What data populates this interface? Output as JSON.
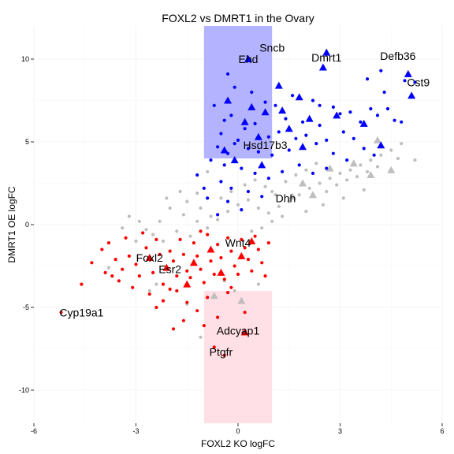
{
  "chart_data": {
    "type": "scatter",
    "title": "FOXL2 vs DMRT1 in the Ovary",
    "xlabel": "FOXL2 KO logFC",
    "ylabel": "DMRT1 OE logFC",
    "xlim": [
      -6,
      6
    ],
    "ylim": [
      -12,
      12
    ],
    "x_ticks": [
      -6,
      -3,
      0,
      3,
      6
    ],
    "y_ticks": [
      -10,
      -5,
      0,
      5,
      10
    ],
    "grid": true,
    "legend": "none",
    "colors": {
      "blue_points": "#0000ff",
      "red_points": "#ff0000",
      "grey_points": "#bebebe",
      "blue_region": "#b3b3ff",
      "red_region": "#ffe0e6"
    },
    "regions": [
      {
        "x": [
          -1,
          1
        ],
        "y": [
          4,
          12
        ],
        "color": "#b3b3ff"
      },
      {
        "x": [
          -1,
          1
        ],
        "y": [
          -12,
          -4
        ],
        "color": "#ffe0e6"
      }
    ],
    "labeled_genes": [
      {
        "label": "Sncb",
        "x": 1.0,
        "y": 10.7
      },
      {
        "label": "Ehd",
        "x": 0.3,
        "y": 10.0
      },
      {
        "label": "Dmrt1",
        "x": 2.6,
        "y": 10.1
      },
      {
        "label": "Defb36",
        "x": 4.7,
        "y": 10.2
      },
      {
        "label": "Cst9",
        "x": 5.3,
        "y": 8.6
      },
      {
        "label": "Hsd17b3",
        "x": 0.8,
        "y": 4.8
      },
      {
        "label": "Dhh",
        "x": 1.4,
        "y": 1.6
      },
      {
        "label": "Wnt4",
        "x": 0.0,
        "y": -1.1
      },
      {
        "label": "Foxl2",
        "x": -2.6,
        "y": -2.0
      },
      {
        "label": "Esr2",
        "x": -2.0,
        "y": -2.7
      },
      {
        "label": "Cyp19a1",
        "x": -4.6,
        "y": -5.3
      },
      {
        "label": "Adcyap1",
        "x": 0.0,
        "y": -6.4
      },
      {
        "label": "Ptgfr",
        "x": -0.5,
        "y": -7.7
      }
    ],
    "series": [
      {
        "color": "#0000ff",
        "triangles": [
          [
            0.3,
            10.0
          ],
          [
            2.6,
            10.4
          ],
          [
            1.2,
            8.4
          ],
          [
            2.5,
            9.5
          ],
          [
            5.0,
            9.1
          ],
          [
            5.1,
            7.8
          ],
          [
            1.8,
            7.7
          ],
          [
            0.4,
            7.1
          ],
          [
            0.8,
            6.8
          ],
          [
            0.2,
            6.2
          ],
          [
            1.5,
            5.8
          ],
          [
            2.1,
            6.4
          ],
          [
            3.7,
            6.1
          ],
          [
            -0.4,
            4.5
          ],
          [
            0.7,
            3.6
          ],
          [
            1.3,
            6.9
          ],
          [
            -0.3,
            7.5
          ],
          [
            2.9,
            6.6
          ],
          [
            4.2,
            4.8
          ],
          [
            0.6,
            5.3
          ],
          [
            -0.1,
            3.9
          ],
          [
            1.9,
            4.7
          ]
        ],
        "points": [
          [
            -0.3,
            9.1
          ],
          [
            -0.1,
            8.3
          ],
          [
            0.4,
            8.0
          ],
          [
            0.8,
            7.4
          ],
          [
            1.1,
            7.2
          ],
          [
            1.4,
            6.4
          ],
          [
            1.6,
            7.8
          ],
          [
            2.2,
            7.5
          ],
          [
            2.4,
            7.2
          ],
          [
            2.8,
            7.1
          ],
          [
            3.0,
            6.7
          ],
          [
            3.3,
            6.8
          ],
          [
            3.6,
            6.2
          ],
          [
            3.9,
            7.0
          ],
          [
            4.1,
            6.6
          ],
          [
            4.4,
            7.0
          ],
          [
            4.6,
            6.3
          ],
          [
            4.3,
            8.0
          ],
          [
            3.8,
            8.8
          ],
          [
            4.9,
            8.7
          ],
          [
            5.2,
            8.6
          ],
          [
            4.8,
            6.2
          ],
          [
            4.2,
            9.3
          ],
          [
            -0.2,
            6.6
          ],
          [
            -0.4,
            6.3
          ],
          [
            -0.7,
            7.2
          ],
          [
            -0.5,
            5.5
          ],
          [
            -0.6,
            4.7
          ],
          [
            -0.3,
            4.3
          ],
          [
            0.0,
            5.1
          ],
          [
            0.2,
            5.8
          ],
          [
            0.5,
            6.1
          ],
          [
            0.9,
            5.3
          ],
          [
            1.2,
            5.6
          ],
          [
            1.7,
            5.2
          ],
          [
            2.0,
            5.4
          ],
          [
            2.3,
            4.9
          ],
          [
            2.6,
            5.1
          ],
          [
            2.8,
            4.3
          ],
          [
            3.1,
            5.6
          ],
          [
            3.4,
            5.2
          ],
          [
            3.7,
            4.6
          ],
          [
            4.0,
            4.2
          ],
          [
            -0.8,
            3.9
          ],
          [
            -0.4,
            3.6
          ],
          [
            0.1,
            3.4
          ],
          [
            0.5,
            3.1
          ],
          [
            0.9,
            2.8
          ],
          [
            1.3,
            3.2
          ],
          [
            1.8,
            3.6
          ],
          [
            2.2,
            3.1
          ],
          [
            -0.5,
            2.6
          ],
          [
            -0.2,
            2.2
          ],
          [
            0.3,
            2.0
          ],
          [
            0.7,
            1.7
          ],
          [
            -0.3,
            1.4
          ],
          [
            0.1,
            0.9
          ],
          [
            -0.6,
            0.6
          ],
          [
            -1.0,
            2.2
          ],
          [
            -1.2,
            3.0
          ],
          [
            -0.9,
            1.6
          ],
          [
            1.0,
            4.2
          ],
          [
            1.5,
            4.5
          ],
          [
            2.6,
            3.4
          ],
          [
            3.2,
            3.9
          ],
          [
            0.3,
            4.6
          ],
          [
            -0.1,
            4.9
          ],
          [
            0.6,
            4.4
          ],
          [
            1.9,
            6.2
          ],
          [
            2.4,
            6.0
          ]
        ]
      },
      {
        "color": "#ff0000",
        "triangles": [
          [
            -2.6,
            -2.0
          ],
          [
            -2.1,
            -2.6
          ],
          [
            0.4,
            -1.0
          ],
          [
            -0.8,
            -1.5
          ],
          [
            -1.3,
            -2.3
          ],
          [
            0.2,
            -6.5
          ],
          [
            -0.5,
            -2.9
          ],
          [
            -1.5,
            -3.6
          ],
          [
            0.1,
            -1.9
          ]
        ],
        "points": [
          [
            -4.0,
            -1.5
          ],
          [
            -3.6,
            -2.1
          ],
          [
            -3.9,
            -2.9
          ],
          [
            -3.4,
            -2.7
          ],
          [
            -3.2,
            -1.9
          ],
          [
            -3.0,
            -2.4
          ],
          [
            -2.9,
            -3.1
          ],
          [
            -2.7,
            -1.4
          ],
          [
            -2.5,
            -2.9
          ],
          [
            -2.3,
            -1.8
          ],
          [
            -2.2,
            -3.6
          ],
          [
            -2.0,
            -1.6
          ],
          [
            -1.9,
            -2.2
          ],
          [
            -1.8,
            -3.1
          ],
          [
            -1.7,
            -0.9
          ],
          [
            -1.6,
            -1.8
          ],
          [
            -1.5,
            -2.8
          ],
          [
            -1.4,
            -3.2
          ],
          [
            -1.3,
            -1.1
          ],
          [
            -1.2,
            -1.9
          ],
          [
            -1.1,
            -2.7
          ],
          [
            -1.0,
            -3.5
          ],
          [
            -0.9,
            -0.6
          ],
          [
            -0.8,
            -2.2
          ],
          [
            -0.7,
            -3.0
          ],
          [
            -0.6,
            -1.2
          ],
          [
            -0.5,
            -2.0
          ],
          [
            -0.4,
            -3.3
          ],
          [
            -0.3,
            -0.8
          ],
          [
            -0.2,
            -1.6
          ],
          [
            -0.1,
            -2.5
          ],
          [
            0.0,
            -3.0
          ],
          [
            0.1,
            -0.9
          ],
          [
            0.2,
            -1.4
          ],
          [
            0.3,
            -2.1
          ],
          [
            0.4,
            -2.8
          ],
          [
            0.5,
            -0.7
          ],
          [
            0.6,
            -1.5
          ],
          [
            0.7,
            -2.3
          ],
          [
            0.8,
            -3.1
          ],
          [
            -3.5,
            -3.4
          ],
          [
            -3.1,
            -3.8
          ],
          [
            -2.6,
            -4.2
          ],
          [
            -2.2,
            -4.6
          ],
          [
            -1.8,
            -4.0
          ],
          [
            -1.5,
            -4.7
          ],
          [
            -1.2,
            -5.2
          ],
          [
            -0.9,
            -4.4
          ],
          [
            -0.6,
            -5.6
          ],
          [
            -0.3,
            -4.1
          ],
          [
            -2.4,
            -5.0
          ],
          [
            -1.6,
            -5.8
          ],
          [
            -1.0,
            -6.1
          ],
          [
            -0.7,
            -7.4
          ],
          [
            -0.4,
            -7.9
          ],
          [
            0.2,
            -5.3
          ],
          [
            -1.9,
            -6.3
          ],
          [
            -4.3,
            -2.3
          ],
          [
            -3.8,
            -1.1
          ],
          [
            -3.3,
            -0.8
          ],
          [
            -2.8,
            -0.5
          ],
          [
            -2.4,
            -0.9
          ],
          [
            -5.2,
            -5.3
          ],
          [
            -4.6,
            -3.6
          ],
          [
            -1.1,
            -0.4
          ],
          [
            0.9,
            -1.1
          ],
          [
            -3.7,
            -3.1
          ],
          [
            -2.0,
            -3.9
          ],
          [
            -0.2,
            -3.8
          ]
        ]
      },
      {
        "color": "#bebebe",
        "triangles": [
          [
            1.6,
            1.7
          ],
          [
            3.4,
            3.7
          ],
          [
            4.5,
            3.3
          ],
          [
            3.9,
            3.0
          ],
          [
            1.9,
            2.5
          ],
          [
            0.1,
            -4.6
          ],
          [
            -0.7,
            -4.3
          ],
          [
            2.7,
            3.4
          ],
          [
            4.1,
            5.1
          ],
          [
            2.2,
            1.8
          ]
        ],
        "points": [
          [
            -2.0,
            1.0
          ],
          [
            -1.6,
            0.6
          ],
          [
            -1.2,
            0.2
          ],
          [
            -0.9,
            -0.2
          ],
          [
            -0.6,
            0.3
          ],
          [
            -0.3,
            0.8
          ],
          [
            0.0,
            1.2
          ],
          [
            0.3,
            1.5
          ],
          [
            0.6,
            1.0
          ],
          [
            0.9,
            0.7
          ],
          [
            1.2,
            1.1
          ],
          [
            1.5,
            1.4
          ],
          [
            1.8,
            1.8
          ],
          [
            2.1,
            2.2
          ],
          [
            2.4,
            2.5
          ],
          [
            2.7,
            2.8
          ],
          [
            3.0,
            3.1
          ],
          [
            3.3,
            3.3
          ],
          [
            3.6,
            3.6
          ],
          [
            3.9,
            3.9
          ],
          [
            4.2,
            4.2
          ],
          [
            4.5,
            4.5
          ],
          [
            4.8,
            4.9
          ],
          [
            1.0,
            2.0
          ],
          [
            1.4,
            2.6
          ],
          [
            1.7,
            3.0
          ],
          [
            2.0,
            3.3
          ],
          [
            2.3,
            3.7
          ],
          [
            2.6,
            2.0
          ],
          [
            2.9,
            2.4
          ],
          [
            3.2,
            2.7
          ],
          [
            3.5,
            2.9
          ],
          [
            3.8,
            3.2
          ],
          [
            4.1,
            3.5
          ],
          [
            -0.5,
            1.6
          ],
          [
            -0.2,
            2.0
          ],
          [
            0.2,
            2.4
          ],
          [
            0.5,
            2.7
          ],
          [
            0.8,
            2.3
          ],
          [
            1.1,
            1.8
          ],
          [
            -1.5,
            1.4
          ],
          [
            -1.1,
            1.0
          ],
          [
            -0.8,
            0.5
          ],
          [
            -2.5,
            -0.6
          ],
          [
            -2.2,
            -1.0
          ],
          [
            -1.8,
            -0.4
          ],
          [
            -1.4,
            -0.7
          ],
          [
            -3.0,
            -1.0
          ],
          [
            -2.7,
            -0.3
          ],
          [
            -2.3,
            0.2
          ],
          [
            0.4,
            -0.4
          ],
          [
            0.7,
            -0.2
          ],
          [
            1.0,
            0.2
          ],
          [
            1.3,
            0.5
          ],
          [
            -0.4,
            -3.4
          ],
          [
            -0.1,
            -4.0
          ],
          [
            -1.5,
            -4.8
          ],
          [
            -2.6,
            -4.0
          ],
          [
            -1.1,
            -6.8
          ],
          [
            0.6,
            -3.6
          ],
          [
            -3.2,
            0.5
          ],
          [
            -2.9,
            0.2
          ],
          [
            -3.4,
            -0.2
          ],
          [
            -2.1,
            1.6
          ],
          [
            -1.7,
            2.0
          ],
          [
            -1.2,
            1.9
          ],
          [
            2.0,
            0.8
          ],
          [
            2.5,
            1.2
          ],
          [
            3.1,
            1.6
          ],
          [
            3.7,
            2.1
          ],
          [
            -0.9,
            3.2
          ],
          [
            5.2,
            3.9
          ],
          [
            4.7,
            4.0
          ],
          [
            -2.4,
            -3.6
          ],
          [
            -3.8,
            -2.6
          ]
        ]
      }
    ]
  }
}
